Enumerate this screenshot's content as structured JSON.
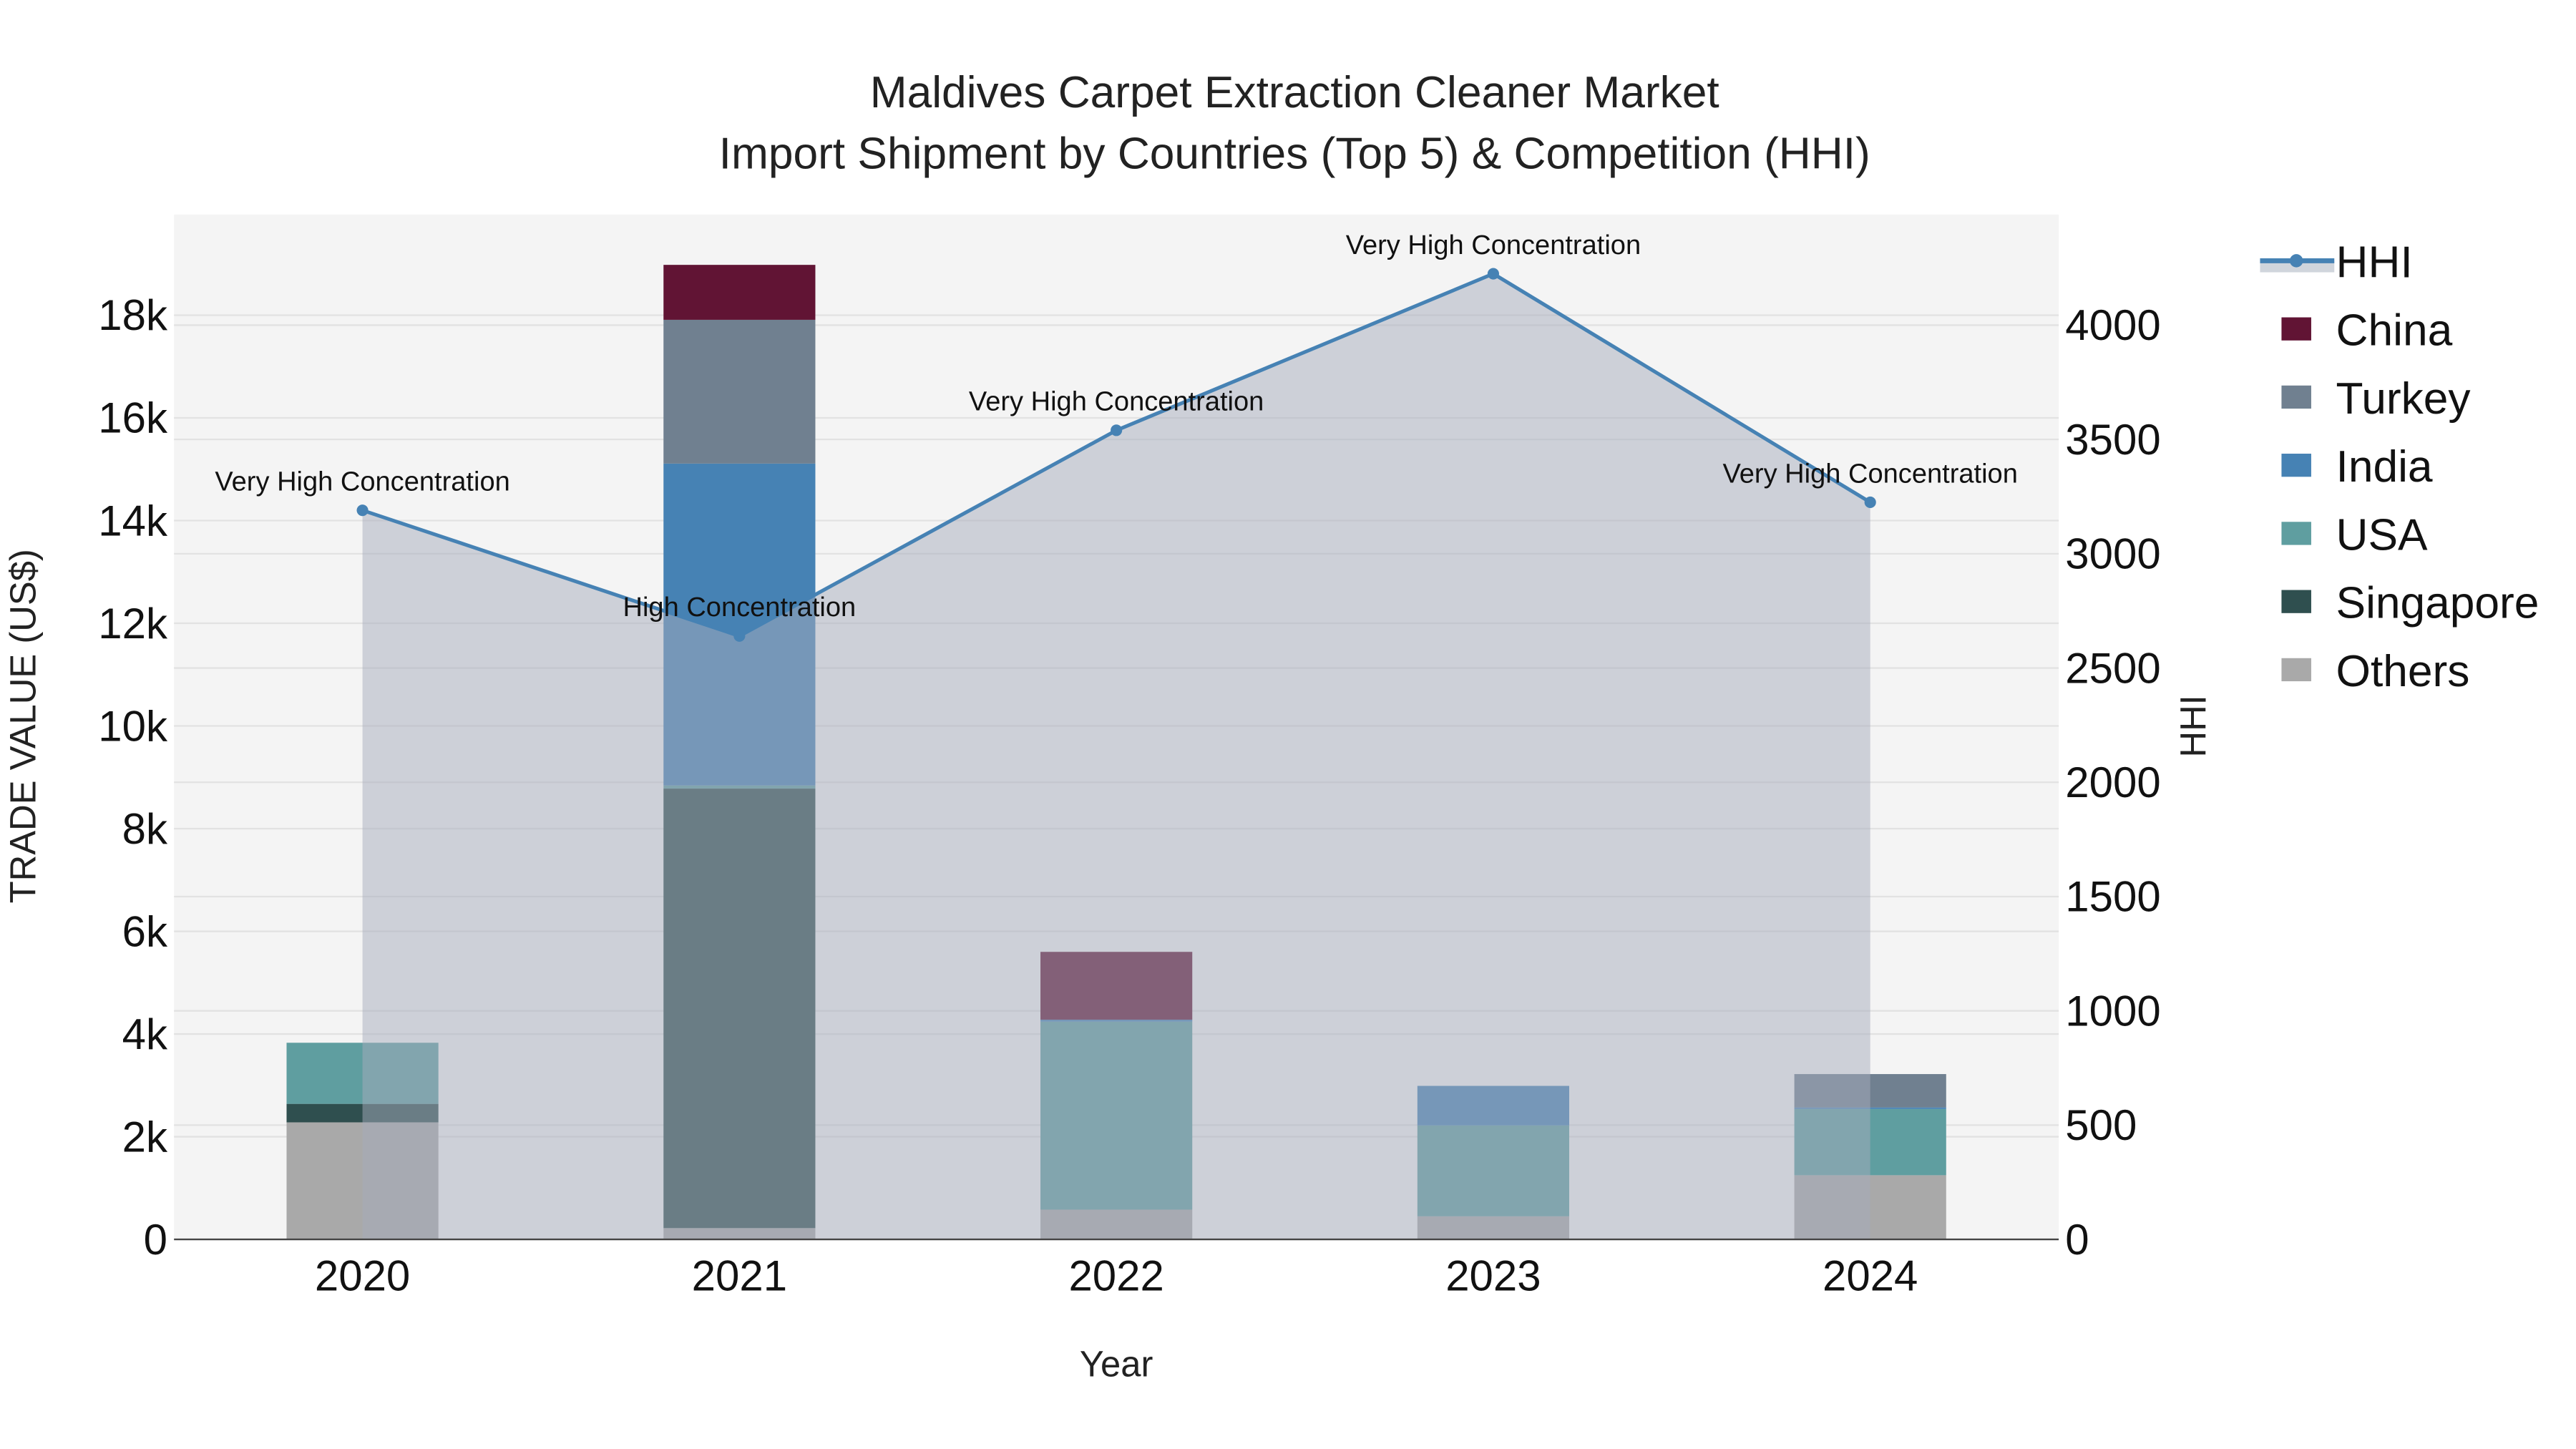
{
  "chart_data": {
    "type": "bar",
    "stacked": true,
    "title": "Maldives Carpet Extraction Cleaner Market",
    "subtitle": "Import Shipment by Countries (Top 5) & Competition (HHI)",
    "xlabel": "Year",
    "ylabel": "TRADE VALUE (US$)",
    "y2label": "HHI",
    "categories": [
      "2020",
      "2021",
      "2022",
      "2023",
      "2024"
    ],
    "ylim": [
      0,
      19960
    ],
    "y2lim": [
      0,
      4484
    ],
    "yticks": [
      0,
      2000,
      4000,
      6000,
      8000,
      10000,
      12000,
      14000,
      16000,
      18000
    ],
    "yticklabels": [
      "0",
      "2k",
      "4k",
      "6k",
      "8k",
      "10k",
      "12k",
      "14k",
      "16k",
      "18k"
    ],
    "y2ticks": [
      0,
      500,
      1000,
      1500,
      2000,
      2500,
      3000,
      3500,
      4000
    ],
    "y2ticklabels": [
      "0",
      "500",
      "1000",
      "1500",
      "2000",
      "2500",
      "3000",
      "3500",
      "4000"
    ],
    "grid": true,
    "legend_position": "right",
    "series": [
      {
        "name": "Others",
        "color": "#a9a9a9",
        "values": [
          2280,
          220,
          580,
          450,
          1250
        ]
      },
      {
        "name": "Singapore",
        "color": "#2f4f4f",
        "values": [
          360,
          8560,
          0,
          0,
          0
        ]
      },
      {
        "name": "USA",
        "color": "#5f9ea0",
        "values": [
          1190,
          60,
          3660,
          1770,
          1290
        ]
      },
      {
        "name": "India",
        "color": "#4682b4",
        "values": [
          0,
          6270,
          40,
          770,
          30
        ]
      },
      {
        "name": "Turkey",
        "color": "#708090",
        "values": [
          0,
          2800,
          0,
          0,
          650
        ]
      },
      {
        "name": "China",
        "color": "#611434",
        "values": [
          0,
          1070,
          1320,
          0,
          0
        ]
      }
    ],
    "hhi": {
      "name": "HHI",
      "color": "#4682b4",
      "values": [
        3190,
        2640,
        3540,
        4225,
        3225
      ],
      "annotations": [
        "Very High Concentration",
        "High Concentration",
        "Very High Concentration",
        "Very High Concentration",
        "Very High Concentration"
      ]
    },
    "legend_order": [
      "HHI",
      "China",
      "Turkey",
      "India",
      "USA",
      "Singapore",
      "Others"
    ]
  }
}
